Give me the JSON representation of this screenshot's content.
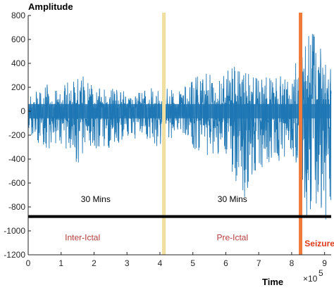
{
  "chart_data": {
    "type": "line",
    "title": "",
    "ylabel": "Amplitude",
    "xlabel": "Time",
    "x_exponent_label": "×10",
    "x_exponent_power": "5",
    "xlim": [
      0,
      9.2
    ],
    "ylim": [
      -1200,
      800
    ],
    "x_ticks": [
      "0",
      "1",
      "2",
      "3",
      "4",
      "5",
      "6",
      "7",
      "8",
      "9"
    ],
    "y_ticks": [
      "800",
      "600",
      "400",
      "200",
      "0",
      "-200",
      "-400",
      "-600",
      "-800",
      "-1000",
      "-1200"
    ],
    "series": [
      {
        "name": "",
        "color": "#1f77b4",
        "envelope": [
          {
            "x": 0.0,
            "upper": 110,
            "lower": -170
          },
          {
            "x": 0.5,
            "upper": 240,
            "lower": -330
          },
          {
            "x": 1.0,
            "upper": 160,
            "lower": -280
          },
          {
            "x": 1.4,
            "upper": 380,
            "lower": -450
          },
          {
            "x": 2.0,
            "upper": 200,
            "lower": -350
          },
          {
            "x": 2.6,
            "upper": 210,
            "lower": -300
          },
          {
            "x": 3.0,
            "upper": 170,
            "lower": -250
          },
          {
            "x": 3.6,
            "upper": 180,
            "lower": -270
          },
          {
            "x": 4.0,
            "upper": 260,
            "lower": -330
          },
          {
            "x": 4.5,
            "upper": 150,
            "lower": -230
          },
          {
            "x": 5.0,
            "upper": 280,
            "lower": -350
          },
          {
            "x": 5.5,
            "upper": 330,
            "lower": -400
          },
          {
            "x": 6.0,
            "upper": 350,
            "lower": -450
          },
          {
            "x": 6.3,
            "upper": 380,
            "lower": -600
          },
          {
            "x": 6.5,
            "upper": 330,
            "lower": -800
          },
          {
            "x": 7.0,
            "upper": 280,
            "lower": -500
          },
          {
            "x": 7.5,
            "upper": 320,
            "lower": -450
          },
          {
            "x": 8.0,
            "upper": 250,
            "lower": -400
          },
          {
            "x": 8.3,
            "upper": 620,
            "lower": -900
          },
          {
            "x": 8.6,
            "upper": 680,
            "lower": -1000
          },
          {
            "x": 9.0,
            "upper": 600,
            "lower": -950
          },
          {
            "x": 9.2,
            "upper": 560,
            "lower": -850
          }
        ]
      }
    ],
    "markers": [
      {
        "x": 4.12,
        "color": "#f0dfa0",
        "label": ""
      },
      {
        "x": 8.27,
        "color": "#f07a3a",
        "label": ""
      }
    ],
    "baseline": {
      "y": -880,
      "color": "#000000"
    },
    "segments": [
      {
        "label": "30 Mins",
        "x_center": 2.05,
        "y": -760
      },
      {
        "label": "30 Mins",
        "x_center": 6.2,
        "y": -760
      }
    ],
    "phases": [
      {
        "label": "Inter-Ictal",
        "x_center": 1.65,
        "y": -1080,
        "color": "#b33a3a",
        "bold": false
      },
      {
        "label": "Pre-Ictal",
        "x_center": 6.2,
        "y": -1080,
        "color": "#b33a3a",
        "bold": false
      },
      {
        "label": "Seizure",
        "x_center": 8.85,
        "y": -1130,
        "color": "#e03a1a",
        "bold": true
      }
    ],
    "grid": false,
    "legend": "none"
  }
}
